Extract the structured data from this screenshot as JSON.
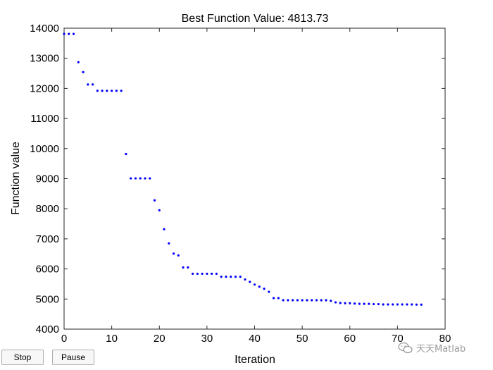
{
  "chart_data": {
    "type": "scatter",
    "title": "Best Function Value: 4813.73",
    "xlabel": "Iteration",
    "ylabel": "Function value",
    "xlim": [
      0,
      80
    ],
    "ylim": [
      4000,
      14000
    ],
    "xticks": [
      0,
      10,
      20,
      30,
      40,
      50,
      60,
      70,
      80
    ],
    "yticks": [
      4000,
      5000,
      6000,
      7000,
      8000,
      9000,
      10000,
      11000,
      12000,
      13000,
      14000
    ],
    "grid": false,
    "marker_color": "#0000ff",
    "series": [
      {
        "x": [
          0,
          1,
          2,
          3,
          4,
          5,
          6,
          7,
          8,
          9,
          10,
          11,
          12,
          13,
          14,
          15,
          16,
          17,
          18,
          19,
          20,
          21,
          22,
          23,
          24,
          25,
          26,
          27,
          28,
          29,
          30,
          31,
          32,
          33,
          34,
          35,
          36,
          37,
          38,
          39,
          40,
          41,
          42,
          43,
          44,
          45,
          46,
          47,
          48,
          49,
          50,
          51,
          52,
          53,
          54,
          55,
          56,
          57,
          58,
          59,
          60,
          61,
          62,
          63,
          64,
          65,
          66,
          67,
          68,
          69,
          70,
          71,
          72,
          73,
          74,
          75
        ],
        "y": [
          13810,
          13810,
          13810,
          12870,
          12540,
          12130,
          12130,
          11920,
          11920,
          11920,
          11920,
          11920,
          11920,
          9820,
          9010,
          9010,
          9010,
          9010,
          9010,
          8280,
          7950,
          7320,
          6850,
          6510,
          6450,
          6050,
          6050,
          5840,
          5840,
          5840,
          5840,
          5840,
          5840,
          5740,
          5740,
          5740,
          5740,
          5740,
          5650,
          5570,
          5480,
          5410,
          5340,
          5240,
          5030,
          5030,
          4960,
          4960,
          4960,
          4960,
          4960,
          4960,
          4960,
          4960,
          4960,
          4960,
          4940,
          4890,
          4870,
          4860,
          4860,
          4850,
          4840,
          4840,
          4840,
          4830,
          4830,
          4820,
          4820,
          4820,
          4820,
          4820,
          4820,
          4820,
          4815,
          4813.73
        ]
      }
    ]
  },
  "controls": {
    "stop_label": "Stop",
    "pause_label": "Pause"
  },
  "watermark": {
    "text": "天天Matlab",
    "icon": "wechat-icon"
  }
}
